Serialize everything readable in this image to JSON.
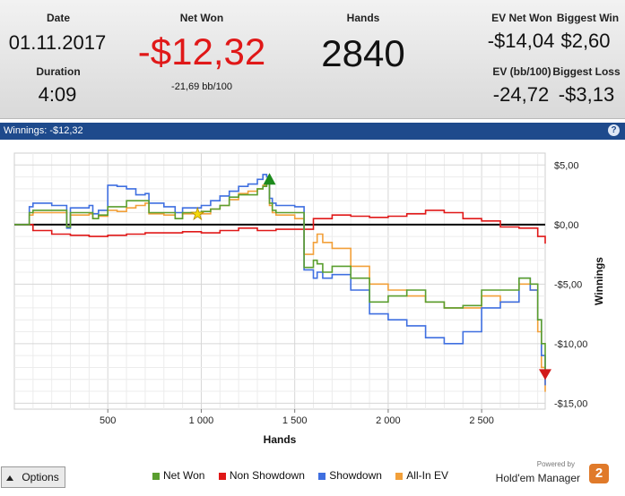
{
  "stats": {
    "date_label": "Date",
    "date_value": "01.11.2017",
    "duration_label": "Duration",
    "duration_value": "4:09",
    "net_won_label": "Net Won",
    "net_won_value": "-$12,32",
    "bb_per_100": "-21,69 bb/100",
    "hands_label": "Hands",
    "hands_value": "2840",
    "ev_net_won_label": "EV Net Won",
    "ev_net_won_value": "-$14,04",
    "biggest_win_label": "Biggest Win",
    "biggest_win_value": "$2,60",
    "ev_bb_label": "EV (bb/100)",
    "ev_bb_value": "-24,72",
    "biggest_loss_label": "Biggest Loss",
    "biggest_loss_value": "-$3,13"
  },
  "panel": {
    "title": "Winnings: -$12,32",
    "help": "?"
  },
  "colors": {
    "net_won": "#5a9e2f",
    "non_showdown": "#e01818",
    "showdown": "#3f6fe0",
    "all_in_ev": "#f2a03a",
    "header_bg": "#1e4a8c",
    "net_won_text": "#e01818"
  },
  "icons": [
    "question-icon",
    "up-arrow-icon",
    "star-icon",
    "green-triangle-marker",
    "red-triangle-marker",
    "hem2-logo-icon"
  ],
  "controls": {
    "options_label": "Options"
  },
  "brand": {
    "powered_by": "Powered by",
    "name": "Hold'em Manager"
  },
  "chart_data": {
    "type": "line",
    "xlabel": "Hands",
    "ylabel": "Winnings",
    "xlim": [
      0,
      2840
    ],
    "ylim": [
      -15.5,
      6
    ],
    "xticks": [
      500,
      1000,
      1500,
      2000,
      2500
    ],
    "xtick_labels": [
      "500",
      "1 000",
      "1 500",
      "2 000",
      "2 500"
    ],
    "yticks": [
      5,
      0,
      -5,
      -10,
      -15
    ],
    "ytick_labels": [
      "$5,00",
      "$0,00",
      "-$5,00",
      "-$10,00",
      "-$15,00"
    ],
    "grid": true,
    "legend_position": "bottom",
    "series": [
      {
        "name": "Net Won",
        "x": [
          0,
          40,
          80,
          100,
          200,
          250,
          280,
          300,
          400,
          420,
          450,
          500,
          550,
          600,
          650,
          700,
          720,
          800,
          860,
          900,
          1000,
          1050,
          1100,
          1150,
          1200,
          1250,
          1300,
          1330,
          1350,
          1365,
          1380,
          1400,
          1500,
          1550,
          1600,
          1620,
          1650,
          1700,
          1800,
          1900,
          2000,
          2100,
          2200,
          2300,
          2400,
          2500,
          2600,
          2700,
          2760,
          2800,
          2820,
          2840
        ],
        "y": [
          0,
          0,
          1,
          1.2,
          1.2,
          1.2,
          -0.2,
          1.0,
          1.0,
          0.5,
          0.8,
          1.5,
          1.5,
          2.0,
          2.0,
          2.0,
          1.0,
          1.0,
          0.5,
          1.0,
          1.1,
          1.3,
          1.6,
          2.3,
          2.5,
          2.5,
          3.0,
          3.2,
          3.5,
          1.8,
          1.2,
          1.0,
          1.0,
          -3.6,
          -3.0,
          -3.3,
          -4.0,
          -3.5,
          -4.5,
          -6.5,
          -6.0,
          -5.5,
          -6.5,
          -7.0,
          -6.8,
          -5.5,
          -5.5,
          -4.5,
          -5.0,
          -8.0,
          -10.0,
          -12.32
        ]
      },
      {
        "name": "Non Showdown",
        "x": [
          0,
          100,
          200,
          300,
          400,
          500,
          600,
          700,
          800,
          900,
          1000,
          1100,
          1200,
          1300,
          1400,
          1500,
          1600,
          1700,
          1800,
          1900,
          2000,
          2100,
          2200,
          2300,
          2400,
          2500,
          2600,
          2700,
          2800,
          2840
        ],
        "y": [
          0,
          -0.5,
          -0.8,
          -0.9,
          -1.0,
          -0.9,
          -0.8,
          -0.7,
          -0.7,
          -0.6,
          -0.7,
          -0.5,
          -0.3,
          -0.5,
          -0.4,
          -0.4,
          0.5,
          0.8,
          0.7,
          0.6,
          0.7,
          0.9,
          1.2,
          1.0,
          0.5,
          0.3,
          -0.2,
          -0.3,
          -1.0,
          -1.6
        ]
      },
      {
        "name": "Showdown",
        "x": [
          0,
          40,
          80,
          100,
          200,
          280,
          300,
          400,
          420,
          450,
          500,
          550,
          600,
          650,
          700,
          720,
          800,
          860,
          900,
          1000,
          1050,
          1100,
          1150,
          1200,
          1250,
          1300,
          1330,
          1350,
          1365,
          1380,
          1400,
          1500,
          1550,
          1600,
          1620,
          1650,
          1700,
          1800,
          1900,
          2000,
          2100,
          2200,
          2300,
          2400,
          2500,
          2600,
          2700,
          2760,
          2800,
          2820,
          2840
        ],
        "y": [
          0,
          0,
          1.5,
          1.8,
          1.6,
          -0.3,
          1.4,
          1.6,
          0.9,
          1.2,
          3.3,
          3.2,
          3.0,
          2.5,
          2.6,
          1.8,
          1.5,
          1.0,
          1.4,
          1.6,
          2.0,
          2.4,
          2.8,
          3.2,
          3.4,
          3.8,
          4.2,
          4.0,
          2.2,
          1.8,
          1.6,
          1.5,
          -3.8,
          -4.5,
          -4.0,
          -4.5,
          -4.2,
          -5.5,
          -7.5,
          -8.0,
          -8.5,
          -9.5,
          -10.0,
          -9.0,
          -7.0,
          -6.5,
          -4.5,
          -5.5,
          -8.0,
          -11.0,
          -13.5
        ]
      },
      {
        "name": "All-In EV",
        "x": [
          0,
          40,
          80,
          100,
          200,
          280,
          300,
          400,
          420,
          450,
          500,
          550,
          600,
          650,
          700,
          720,
          800,
          860,
          900,
          1000,
          1050,
          1100,
          1150,
          1200,
          1250,
          1300,
          1330,
          1350,
          1365,
          1380,
          1400,
          1500,
          1550,
          1600,
          1620,
          1650,
          1700,
          1800,
          1900,
          2000,
          2100,
          2200,
          2300,
          2400,
          2500,
          2600,
          2700,
          2760,
          2800,
          2820,
          2840
        ],
        "y": [
          0,
          0,
          0.8,
          1.0,
          1.0,
          -0.2,
          0.8,
          0.9,
          0.5,
          0.7,
          1.2,
          1.1,
          1.4,
          1.6,
          1.8,
          0.9,
          0.8,
          0.5,
          0.9,
          0.9,
          1.3,
          1.6,
          2.1,
          2.6,
          2.8,
          3.0,
          3.3,
          3.5,
          1.6,
          1.0,
          0.8,
          0.5,
          -2.5,
          -1.5,
          -0.8,
          -1.5,
          -2.0,
          -3.5,
          -5.0,
          -5.5,
          -6.0,
          -6.5,
          -7.0,
          -7.0,
          -6.0,
          -6.5,
          -5.0,
          -5.5,
          -9.0,
          -12.0,
          -14.04
        ]
      }
    ]
  }
}
